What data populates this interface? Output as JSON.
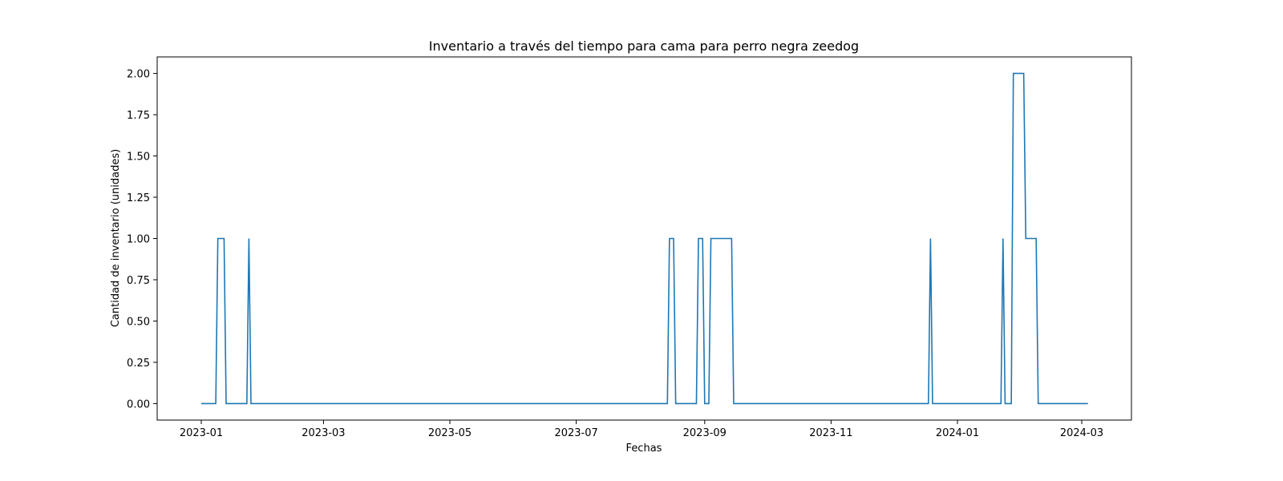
{
  "chart_data": {
    "type": "line",
    "title": "Inventario a través del tiempo para cama para perro negra zeedog",
    "xlabel": "Fechas",
    "ylabel": "Cantidad de inventario (unidades)",
    "xlim": [
      "2022-12-20",
      "2024-03-10"
    ],
    "ylim": [
      -0.1,
      2.1
    ],
    "grid": false,
    "line_color": "#1f77b4",
    "x_ticks": [
      "2023-01-01",
      "2023-03-01",
      "2023-05-01",
      "2023-07-01",
      "2023-09-01",
      "2023-11-01",
      "2024-01-01",
      "2024-03-01"
    ],
    "x_tick_labels": [
      "2023-01",
      "2023-03",
      "2023-05",
      "2023-07",
      "2023-09",
      "2023-11",
      "2024-01",
      "2024-03"
    ],
    "y_ticks": [
      0,
      0.25,
      0.5,
      0.75,
      1.0,
      1.25,
      1.5,
      1.75,
      2.0
    ],
    "y_tick_labels": [
      "0.00",
      "0.25",
      "0.50",
      "0.75",
      "1.00",
      "1.25",
      "1.50",
      "1.75",
      "2.00"
    ],
    "series": [
      {
        "x": [
          "2023-01-01",
          "2023-01-08",
          "2023-01-09",
          "2023-01-12",
          "2023-01-13",
          "2023-01-23",
          "2023-01-24",
          "2023-01-25",
          "2023-08-14",
          "2023-08-15",
          "2023-08-17",
          "2023-08-18",
          "2023-08-28",
          "2023-08-29",
          "2023-08-31",
          "2023-09-01",
          "2023-09-03",
          "2023-09-04",
          "2023-09-14",
          "2023-09-15",
          "2023-12-18",
          "2023-12-19",
          "2023-12-20",
          "2024-01-22",
          "2024-01-23",
          "2024-01-24",
          "2024-01-27",
          "2024-01-28",
          "2024-02-02",
          "2024-02-03",
          "2024-02-08",
          "2024-02-09",
          "2024-03-04"
        ],
        "y": [
          0,
          0,
          1,
          1,
          0,
          0,
          1,
          0,
          0,
          1,
          1,
          0,
          0,
          1,
          1,
          0,
          0,
          1,
          1,
          0,
          0,
          1,
          0,
          0,
          1,
          0,
          0,
          2,
          2,
          1,
          1,
          0,
          0
        ]
      }
    ]
  }
}
